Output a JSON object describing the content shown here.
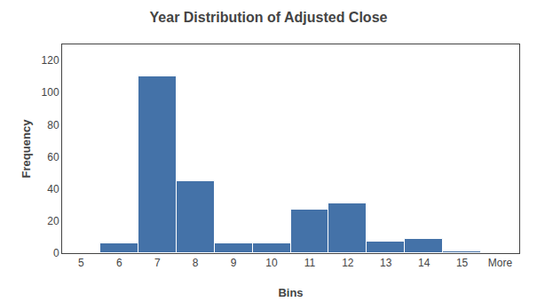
{
  "chart_data": {
    "type": "bar",
    "title": "Year Distribution of Adjusted Close",
    "xlabel": "Bins",
    "ylabel": "Frequency",
    "categories": [
      "5",
      "6",
      "7",
      "8",
      "9",
      "10",
      "11",
      "12",
      "13",
      "14",
      "15",
      "More"
    ],
    "values": [
      0,
      6,
      110,
      45,
      6,
      6,
      27,
      31,
      7,
      9,
      1,
      0
    ],
    "color": "#4472A8",
    "ylim": [
      0,
      130
    ],
    "yticks": [
      0,
      20,
      40,
      60,
      80,
      100,
      120
    ],
    "grid": false
  }
}
